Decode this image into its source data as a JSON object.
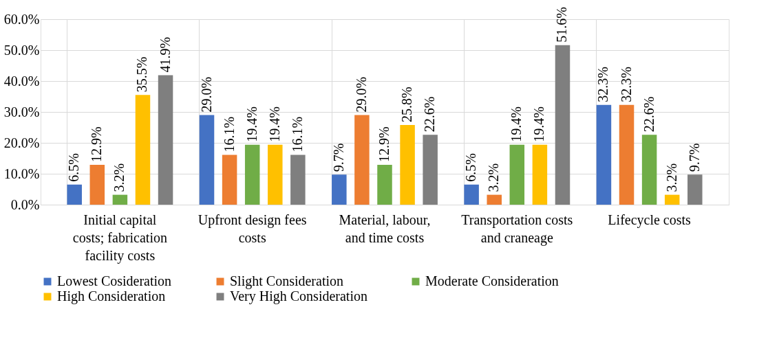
{
  "chart_data": {
    "type": "bar",
    "categories": [
      "Initial capital costs; fabrication facility costs",
      "Upfront design fees costs",
      "Material, labour, and time costs",
      "Transportation costs and craneage",
      "Lifecycle costs"
    ],
    "series": [
      {
        "name": "Lowest Cosideration",
        "color": "#4472c4",
        "values": [
          6.5,
          29.0,
          9.7,
          6.5,
          32.3
        ],
        "value_labels": [
          "6.5%",
          "29.0%",
          "9.7%",
          "6.5%",
          "32.3%"
        ]
      },
      {
        "name": "Slight Consideration",
        "color": "#ed7d31",
        "values": [
          12.9,
          16.1,
          29.0,
          3.2,
          32.3
        ],
        "value_labels": [
          "12.9%",
          "16.1%",
          "29.0%",
          "3.2%",
          "32.3%"
        ]
      },
      {
        "name": "Moderate Consideration",
        "color": "#70ad47",
        "values": [
          3.2,
          19.4,
          12.9,
          19.4,
          22.6
        ],
        "value_labels": [
          "3.2%",
          "19.4%",
          "12.9%",
          "19.4%",
          "22.6%"
        ]
      },
      {
        "name": "High Consideration",
        "color": "#ffc000",
        "values": [
          35.5,
          19.4,
          25.8,
          19.4,
          3.2
        ],
        "value_labels": [
          "35.5%",
          "19.4%",
          "25.8%",
          "19.4%",
          "3.2%"
        ]
      },
      {
        "name": "Very High Consideration",
        "color": "#7f7f7f",
        "values": [
          41.9,
          16.1,
          22.6,
          51.6,
          9.7
        ],
        "value_labels": [
          "41.9%",
          "16.1%",
          "22.6%",
          "51.6%",
          "9.7%"
        ]
      }
    ],
    "ylim": [
      0,
      60
    ],
    "yticks": [
      {
        "value": 0,
        "label": "0.0%"
      },
      {
        "value": 10,
        "label": "10.0%"
      },
      {
        "value": 20,
        "label": "20.0%"
      },
      {
        "value": 30,
        "label": "30.0%"
      },
      {
        "value": 40,
        "label": "40.0%"
      },
      {
        "value": 50,
        "label": "50.0%"
      },
      {
        "value": 60,
        "label": "60.0%"
      }
    ],
    "grid": true,
    "legend": "bottom"
  }
}
